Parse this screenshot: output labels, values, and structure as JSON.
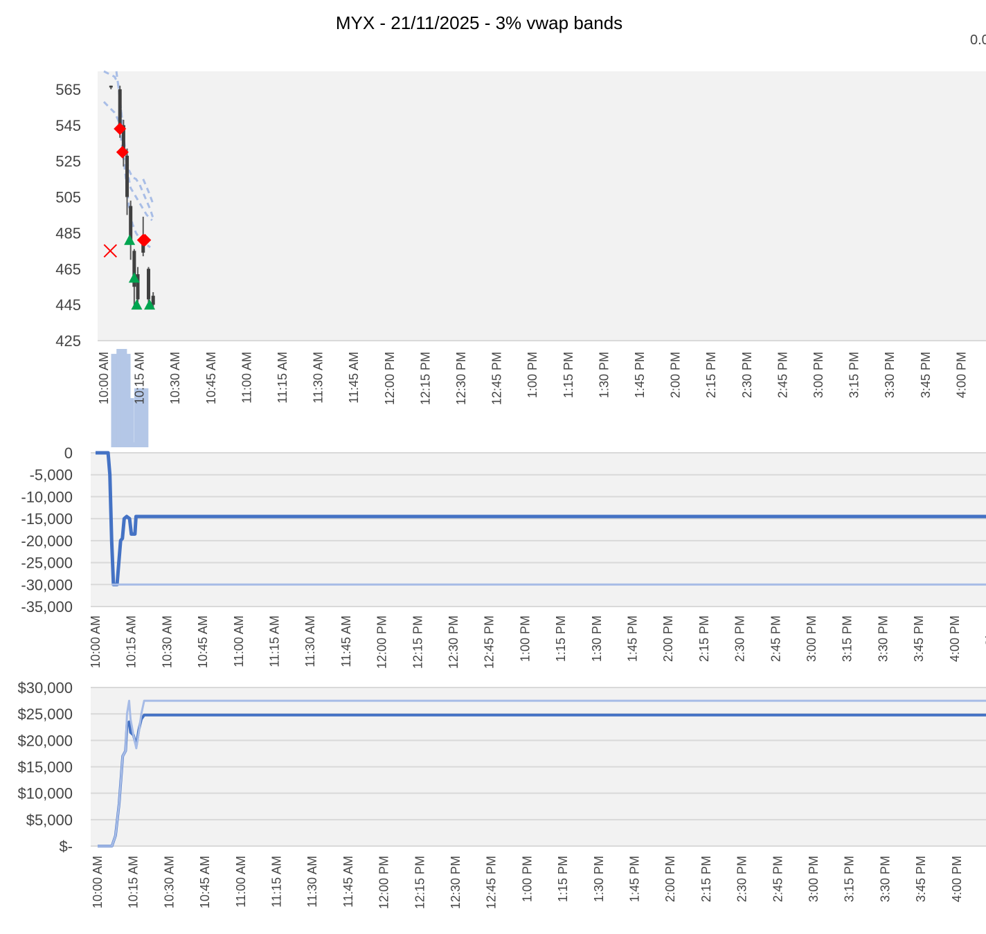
{
  "title": "MYX - 21/11/2025 - 3% vwap bands",
  "clipped_label": "0.0",
  "x_labels": [
    "10:00 AM",
    "10:15 AM",
    "10:30 AM",
    "10:45 AM",
    "11:00 AM",
    "11:15 AM",
    "11:30 AM",
    "11:45 AM",
    "12:00 PM",
    "12:15 PM",
    "12:30 PM",
    "12:45 PM",
    "1:00 PM",
    "1:15 PM",
    "1:30 PM",
    "1:45 PM",
    "2:00 PM",
    "2:15 PM",
    "2:30 PM",
    "2:45 PM",
    "3:00 PM",
    "3:15 PM",
    "3:30 PM",
    "3:45 PM",
    "4:00 PM",
    "Close"
  ],
  "chart_data": [
    {
      "type": "candlestick",
      "title": "MYX - 21/11/2025 - 3% vwap bands",
      "ylim": [
        425,
        575
      ],
      "y_ticks": [
        565,
        545,
        525,
        505,
        485,
        465,
        445,
        425
      ],
      "x_range": [
        0,
        25
      ],
      "candles": [
        {
          "x": 0.2,
          "open": 567,
          "close": 566,
          "high": 567,
          "low": 565,
          "up": false
        },
        {
          "x": 0.45,
          "open": 565,
          "close": 545,
          "high": 567,
          "low": 538,
          "up": false
        },
        {
          "x": 0.55,
          "open": 545,
          "close": 528,
          "high": 548,
          "low": 522,
          "up": false
        },
        {
          "x": 0.65,
          "open": 528,
          "close": 505,
          "high": 532,
          "low": 495,
          "up": false
        },
        {
          "x": 0.75,
          "open": 500,
          "close": 480,
          "high": 503,
          "low": 470,
          "up": false
        },
        {
          "x": 0.85,
          "open": 475,
          "close": 455,
          "high": 476,
          "low": 443,
          "up": false
        },
        {
          "x": 0.95,
          "open": 462,
          "close": 448,
          "high": 466,
          "low": 443,
          "up": false
        },
        {
          "x": 1.1,
          "open": 480,
          "close": 474,
          "high": 494,
          "low": 472,
          "up": false
        },
        {
          "x": 1.25,
          "open": 465,
          "close": 448,
          "high": 466,
          "low": 444,
          "up": false
        },
        {
          "x": 1.38,
          "open": 450,
          "close": 445,
          "high": 452,
          "low": 443,
          "up": false
        }
      ],
      "series": [
        {
          "name": "",
          "style": "dashed",
          "color": "#a8bde6",
          "points": [
            [
              0,
              575
            ],
            [
              0.3,
              572
            ],
            [
              0.4,
              568
            ],
            [
              0.5,
              550
            ],
            [
              0.6,
              530
            ],
            [
              0.7,
              520
            ],
            [
              0.8,
              516
            ],
            [
              0.9,
              515
            ],
            [
              1.0,
              512
            ],
            [
              1.15,
              505
            ],
            [
              1.3,
              498
            ],
            [
              1.4,
              492
            ]
          ]
        },
        {
          "name": "",
          "style": "dashed",
          "color": "#a8bde6",
          "points": [
            [
              0,
              558
            ],
            [
              0.3,
              552
            ],
            [
              0.4,
              548
            ],
            [
              0.5,
              535
            ],
            [
              0.6,
              518
            ],
            [
              0.7,
              500
            ],
            [
              0.8,
              490
            ],
            [
              0.9,
              485
            ],
            [
              1.0,
              482
            ],
            [
              1.15,
              479
            ],
            [
              1.3,
              477
            ]
          ]
        },
        {
          "name": "",
          "style": "dashed",
          "color": "#a8bde6",
          "points": [
            [
              0.35,
              575
            ],
            [
              0.45,
              560
            ],
            [
              0.55,
              538
            ],
            [
              0.65,
              520
            ],
            [
              0.75,
              510
            ],
            [
              0.9,
              505
            ],
            [
              1.05,
              500
            ],
            [
              1.2,
              495
            ],
            [
              1.35,
              492
            ]
          ]
        },
        {
          "name": "",
          "style": "dashed",
          "color": "#a8bde6",
          "points": [
            [
              1.1,
              515
            ],
            [
              1.25,
              508
            ],
            [
              1.4,
              500
            ]
          ]
        }
      ],
      "markers": [
        {
          "shape": "diamond",
          "color": "#ff0000",
          "x": 0.45,
          "y": 543
        },
        {
          "shape": "diamond",
          "color": "#ff0000",
          "x": 0.52,
          "y": 530
        },
        {
          "shape": "diamond",
          "color": "#ff0000",
          "x": 1.1,
          "y": 481
        },
        {
          "shape": "diamond",
          "color": "#ff0000",
          "x": 1.15,
          "y": 481
        },
        {
          "shape": "triangle",
          "color": "#00a550",
          "x": 0.72,
          "y": 481
        },
        {
          "shape": "triangle",
          "color": "#00a550",
          "x": 0.85,
          "y": 460
        },
        {
          "shape": "triangle",
          "color": "#00a550",
          "x": 0.92,
          "y": 445
        },
        {
          "shape": "triangle",
          "color": "#00a550",
          "x": 1.28,
          "y": 445
        },
        {
          "shape": "x",
          "color": "#ff0000",
          "x": 0.18,
          "y": 475
        }
      ],
      "volume": [
        {
          "x": 0.3,
          "value": 95
        },
        {
          "x": 0.45,
          "value": 100
        },
        {
          "x": 0.55,
          "value": 100
        },
        {
          "x": 0.65,
          "value": 95
        },
        {
          "x": 0.75,
          "value": 50
        },
        {
          "x": 0.85,
          "value": 5
        },
        {
          "x": 0.95,
          "value": 60
        },
        {
          "x": 1.05,
          "value": 60
        },
        {
          "x": 1.15,
          "value": 60
        }
      ],
      "grid": false
    },
    {
      "type": "line",
      "ylim": [
        -35000,
        0
      ],
      "y_ticks": [
        "0",
        "-5,000",
        "-10,000",
        "-15,000",
        "-20,000",
        "-25,000",
        "-30,000",
        "-35,000"
      ],
      "y_tick_values": [
        0,
        -5000,
        -10000,
        -15000,
        -20000,
        -25000,
        -30000,
        -35000
      ],
      "x_range": [
        0,
        25
      ],
      "grid": true,
      "series": [
        {
          "name": "",
          "color": "#4472c4",
          "width": 5,
          "points": [
            [
              0,
              0
            ],
            [
              0.35,
              0
            ],
            [
              0.4,
              -5000
            ],
            [
              0.45,
              -20000
            ],
            [
              0.5,
              -30000
            ],
            [
              0.6,
              -30000
            ],
            [
              0.65,
              -25000
            ],
            [
              0.7,
              -20000
            ],
            [
              0.75,
              -19500
            ],
            [
              0.8,
              -15000
            ],
            [
              0.87,
              -14500
            ],
            [
              0.95,
              -15000
            ],
            [
              1.0,
              -18500
            ],
            [
              1.1,
              -18500
            ],
            [
              1.13,
              -14500
            ],
            [
              25,
              -14500
            ]
          ]
        },
        {
          "name": "",
          "color": "#a6bbe6",
          "width": 3,
          "points": [
            [
              0.45,
              -30000
            ],
            [
              25,
              -30000
            ]
          ]
        }
      ]
    },
    {
      "type": "line",
      "ylim": [
        0,
        30000
      ],
      "y_ticks": [
        "$30,000",
        "$25,000",
        "$20,000",
        "$15,000",
        "$10,000",
        "$5,000",
        "$-"
      ],
      "y_tick_values": [
        30000,
        25000,
        20000,
        15000,
        10000,
        5000,
        0
      ],
      "x_range": [
        0,
        25
      ],
      "grid": true,
      "series": [
        {
          "name": "",
          "color": "#4472c4",
          "width": 4,
          "points": [
            [
              0,
              0
            ],
            [
              0.4,
              0
            ],
            [
              0.5,
              2000
            ],
            [
              0.6,
              8000
            ],
            [
              0.7,
              17000
            ],
            [
              0.78,
              18000
            ],
            [
              0.82,
              23000
            ],
            [
              0.88,
              23500
            ],
            [
              0.92,
              21500
            ],
            [
              1.0,
              21000
            ],
            [
              1.08,
              19000
            ],
            [
              1.15,
              22000
            ],
            [
              1.22,
              24000
            ],
            [
              1.3,
              24800
            ],
            [
              25,
              24800
            ]
          ]
        },
        {
          "name": "",
          "color": "#a6bbe6",
          "width": 3,
          "points": [
            [
              0,
              0
            ],
            [
              0.4,
              0
            ],
            [
              0.5,
              2000
            ],
            [
              0.6,
              8000
            ],
            [
              0.7,
              17000
            ],
            [
              0.78,
              18000
            ],
            [
              0.82,
              25000
            ],
            [
              0.88,
              27500
            ],
            [
              0.92,
              24000
            ],
            [
              1.0,
              21000
            ],
            [
              1.08,
              18500
            ],
            [
              1.15,
              21500
            ],
            [
              1.22,
              25000
            ],
            [
              1.3,
              27500
            ],
            [
              25,
              27500
            ]
          ]
        }
      ]
    }
  ]
}
